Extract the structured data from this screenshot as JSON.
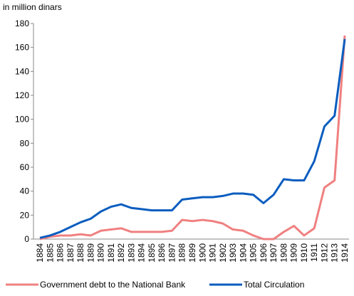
{
  "chart_data": {
    "type": "line",
    "y_label": "in million dinars",
    "categories": [
      "1884",
      "1885",
      "1886",
      "1887",
      "1888",
      "1889",
      "1890",
      "1891",
      "1892",
      "1893",
      "1894",
      "1895",
      "1896",
      "1897",
      "1898",
      "1899",
      "1900",
      "1901",
      "1902",
      "1903",
      "1904",
      "1905",
      "1906",
      "1907",
      "1908",
      "1909",
      "1910",
      "1911",
      "1912",
      "1913",
      "1914"
    ],
    "series": [
      {
        "name": "Government debt to the National Bank",
        "color": "#f08080",
        "values": [
          0,
          2,
          3,
          3,
          4,
          3,
          7,
          8,
          9,
          6,
          6,
          6,
          6,
          7,
          16,
          15,
          16,
          15,
          13,
          8,
          7,
          3,
          0,
          0,
          6,
          11,
          3,
          9,
          43,
          49,
          170
        ]
      },
      {
        "name": "Total Circulation",
        "color": "#0a5dbf",
        "values": [
          1,
          3,
          6,
          10,
          14,
          17,
          23,
          27,
          29,
          26,
          25,
          24,
          24,
          24,
          33,
          34,
          35,
          35,
          36,
          38,
          38,
          37,
          30,
          37,
          50,
          49,
          49,
          65,
          94,
          103,
          167
        ]
      }
    ],
    "ylim": [
      0,
      180
    ],
    "yticks": [
      0,
      20,
      40,
      60,
      80,
      100,
      120,
      140,
      160,
      180
    ],
    "grid": false,
    "legend": "bottom"
  }
}
